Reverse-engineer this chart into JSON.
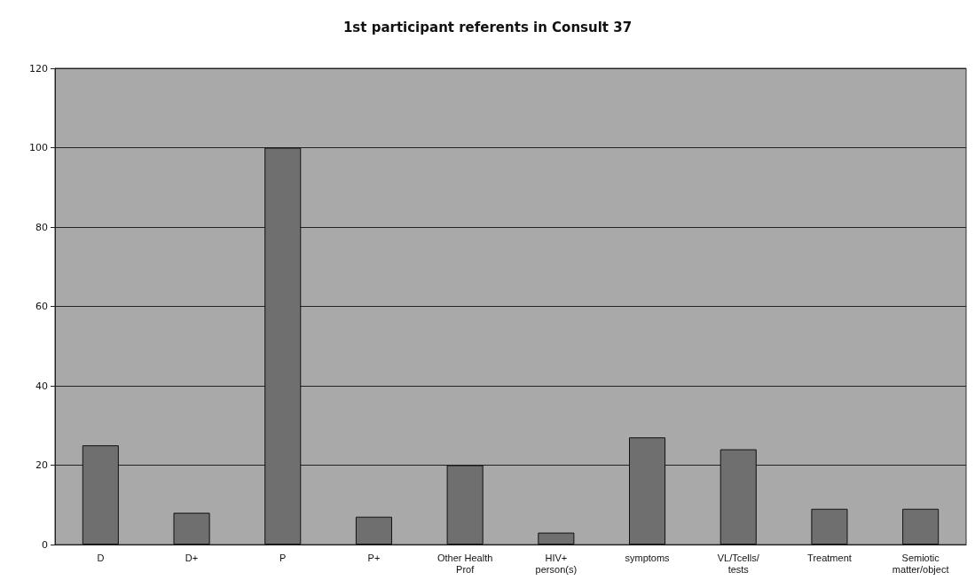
{
  "chart_data": {
    "type": "bar",
    "title": "1st participant referents in Consult 37",
    "categories": [
      "D",
      "D+",
      "P",
      "P+",
      "Other Health\nProf",
      "HIV+\nperson(s)",
      "symptoms",
      "VL/Tcells/\ntests",
      "Treatment",
      "Semiotic\nmatter/object"
    ],
    "values": [
      25,
      8,
      100,
      7,
      20,
      3,
      27,
      24,
      9,
      9
    ],
    "color": "#6f6f6f",
    "ylim": [
      0,
      120
    ],
    "yticks": [
      0,
      20,
      40,
      60,
      80,
      100,
      120
    ],
    "grid": "y"
  }
}
